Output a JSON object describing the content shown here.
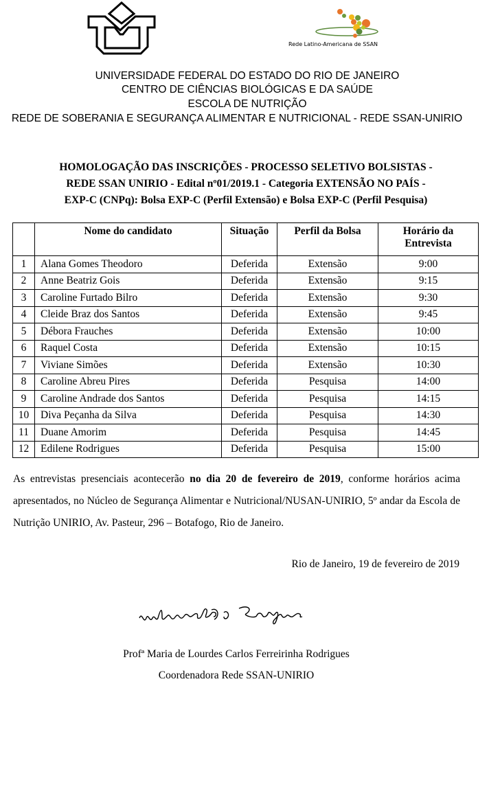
{
  "logos": {
    "unirio": "unirio-logo",
    "ssan_caption": "Rede Latino-Americana de SSAN"
  },
  "header": [
    "UNIVERSIDADE FEDERAL DO ESTADO DO RIO DE JANEIRO",
    "CENTRO DE CIÊNCIAS BIOLÓGICAS E DA SAÚDE",
    "ESCOLA DE NUTRIÇÃO",
    "REDE DE SOBERANIA E SEGURANÇA ALIMENTAR E NUTRICIONAL - REDE SSAN-UNIRIO"
  ],
  "title": [
    "HOMOLOGAÇÃO DAS INSCRIÇÕES - PROCESSO SELETIVO BOLSISTAS -",
    "REDE SSAN UNIRIO - Edital  nº01/2019.1 - Categoria EXTENSÃO NO PAÍS -",
    "EXP-C (CNPq): Bolsa EXP-C (Perfil Extensão) e  Bolsa EXP-C (Perfil Pesquisa)"
  ],
  "table": {
    "headers": [
      "",
      "Nome do candidato",
      "Situação",
      "Perfil da Bolsa",
      "Horário da Entrevista"
    ],
    "rows": [
      [
        "1",
        "Alana Gomes Theodoro",
        "Deferida",
        "Extensão",
        "9:00"
      ],
      [
        "2",
        "Anne Beatriz Gois",
        "Deferida",
        "Extensão",
        "9:15"
      ],
      [
        "3",
        "Caroline Furtado Bilro",
        "Deferida",
        "Extensão",
        "9:30"
      ],
      [
        "4",
        "Cleide Braz dos Santos",
        "Deferida",
        "Extensão",
        "9:45"
      ],
      [
        "5",
        "Débora Frauches",
        "Deferida",
        "Extensão",
        "10:00"
      ],
      [
        "6",
        "Raquel Costa",
        "Deferida",
        "Extensão",
        "10:15"
      ],
      [
        "7",
        "Viviane Simões",
        "Deferida",
        "Extensão",
        "10:30"
      ],
      [
        "8",
        "Caroline Abreu Pires",
        "Deferida",
        "Pesquisa",
        "14:00"
      ],
      [
        "9",
        "Caroline Andrade dos Santos",
        "Deferida",
        "Pesquisa",
        "14:15"
      ],
      [
        "10",
        "Diva Peçanha da Silva",
        "Deferida",
        "Pesquisa",
        "14:30"
      ],
      [
        "11",
        "Duane Amorim",
        "Deferida",
        "Pesquisa",
        "14:45"
      ],
      [
        "12",
        "Edilene Rodrigues",
        "Deferida",
        "Pesquisa",
        "15:00"
      ]
    ]
  },
  "paragraph": {
    "before": "As entrevistas presenciais acontecerão ",
    "bold": "no dia 20 de fevereiro de 2019",
    "after": ", conforme horários acima apresentados, no Núcleo de Segurança Alimentar e Nutricional/NUSAN-UNIRIO, 5º andar da Escola de Nutrição UNIRIO, Av. Pasteur, 296 – Botafogo, Rio de Janeiro."
  },
  "date_line": "Rio de Janeiro, 19 de fevereiro de 2019",
  "signer": {
    "name": "Profª Maria de Lourdes Carlos Ferreirinha Rodrigues",
    "role": "Coordenadora Rede SSAN-UNIRIO"
  }
}
